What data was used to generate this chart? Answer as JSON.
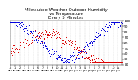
{
  "title": "Milwaukee Weather Outdoor Humidity\nvs Temperature\nEvery 5 Minutes",
  "title_fontsize": 4.0,
  "background_color": "#ffffff",
  "grid_color": "#bbbbbb",
  "ylim": [
    20,
    100
  ],
  "xlim": [
    0,
    287
  ],
  "y_ticks": [
    20,
    30,
    40,
    50,
    60,
    70,
    80,
    90,
    100
  ],
  "y_tick_fontsize": 3.2,
  "x_tick_fontsize": 2.5,
  "blue_color": "#0000dd",
  "red_color": "#dd0000",
  "marker_size": 0.5
}
